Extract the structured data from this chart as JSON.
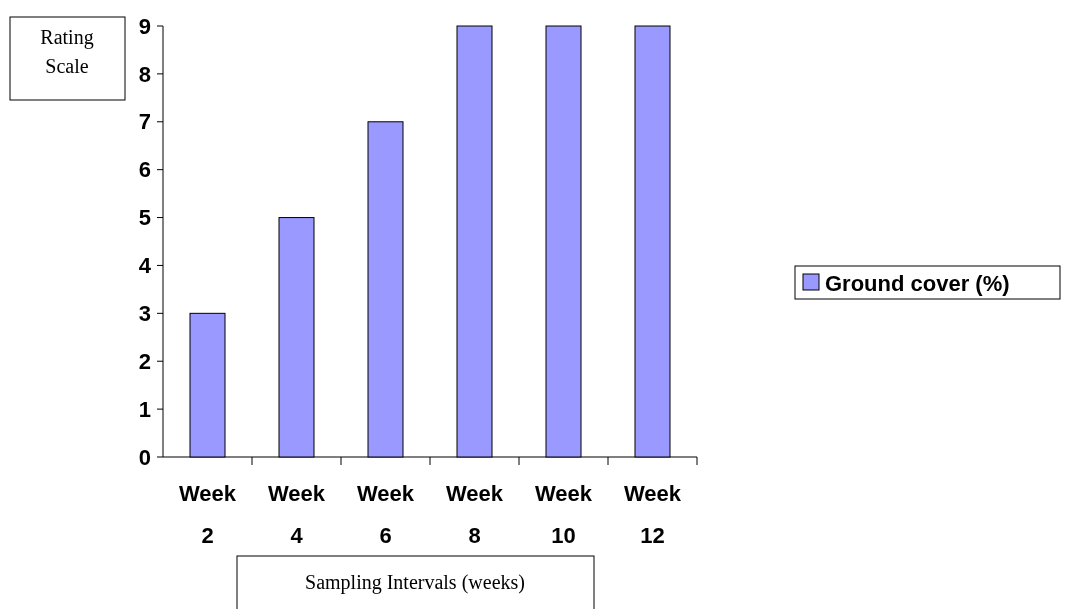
{
  "chart_data": {
    "type": "bar",
    "categories": [
      "Week 2",
      "Week 4",
      "Week 6",
      "Week 8",
      "Week 10",
      "Week 12"
    ],
    "series": [
      {
        "name": "Ground cover (%)",
        "color": "#9999ff",
        "values": [
          3,
          5,
          7,
          9,
          9,
          9
        ]
      }
    ],
    "ylim": [
      0,
      9
    ],
    "yticks": [
      0,
      1,
      2,
      3,
      4,
      5,
      6,
      7,
      8,
      9
    ],
    "ylabel": "Rating Scale",
    "xlabel": "Sampling Intervals (weeks)",
    "legend": "right",
    "grid": false
  }
}
